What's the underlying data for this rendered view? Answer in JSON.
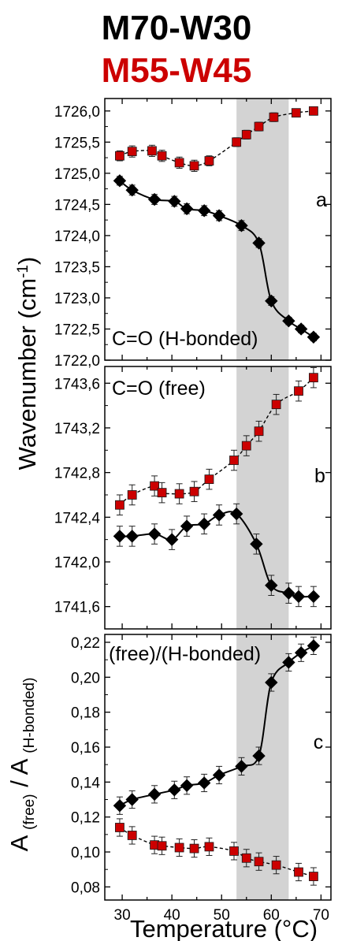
{
  "legend": {
    "series1": "M70-W30",
    "series2": "M55-W45",
    "series1_color": "#000000",
    "series2_color": "#cc0000"
  },
  "axes": {
    "ylabel_main": "Wavenumber (cm",
    "ylabel_main_sup": "-1",
    "ylabel_main_tail": ")",
    "ylabel_ratio_A1": "A",
    "ylabel_ratio_sub1": "(free)",
    "ylabel_ratio_mid": "/ A",
    "ylabel_ratio_sub2": "(H-bonded)",
    "xlabel": "Temperature (°C)"
  },
  "shading": {
    "x_start": 53,
    "x_end": 63.5,
    "color": "#d3d3d3"
  },
  "chart_data": [
    {
      "type": "line",
      "panel_letter": "a",
      "annotation": "C=O (H-bonded)",
      "xlim": [
        26.5,
        72
      ],
      "ylim": [
        1722.0,
        1726.2
      ],
      "ytick_values": [
        1722.0,
        1722.5,
        1723.0,
        1723.5,
        1724.0,
        1724.5,
        1725.0,
        1725.5,
        1726.0
      ],
      "ytick_labels": [
        "1722,0",
        "1722,5",
        "1723,0",
        "1723,5",
        "1724,0",
        "1724,5",
        "1725,0",
        "1725,5",
        "1726,0"
      ],
      "series": [
        {
          "name": "M70-W30",
          "marker": "diamond",
          "x": [
            29.5,
            32,
            36.5,
            40.5,
            43,
            46.5,
            49.5,
            54,
            57.5,
            60,
            63.5,
            66,
            68.5
          ],
          "y": [
            1724.88,
            1724.73,
            1724.58,
            1724.55,
            1724.43,
            1724.4,
            1724.32,
            1724.16,
            1723.88,
            1722.95,
            1722.63,
            1722.5,
            1722.37
          ],
          "err": [
            0.07,
            0.08,
            0.08,
            0.08,
            0.08,
            0.08,
            0.08,
            0.08,
            0.07,
            0.07,
            0.06,
            0.06,
            0.06
          ]
        },
        {
          "name": "M55-W45",
          "marker": "square",
          "x": [
            29.5,
            32,
            36,
            38,
            41.5,
            44.5,
            47.5,
            53,
            55,
            57.5,
            60.5,
            65,
            68.5
          ],
          "y": [
            1725.28,
            1725.35,
            1725.36,
            1725.28,
            1725.17,
            1725.12,
            1725.2,
            1725.5,
            1725.62,
            1725.75,
            1725.9,
            1725.97,
            1726.0
          ],
          "err": [
            0.08,
            0.09,
            0.09,
            0.09,
            0.09,
            0.09,
            0.08,
            0.07,
            0.07,
            0.07,
            0.07,
            0.06,
            0.06
          ]
        }
      ]
    },
    {
      "type": "line",
      "panel_letter": "b",
      "annotation": "C=O (free)",
      "xlim": [
        26.5,
        72
      ],
      "ylim": [
        1741.4,
        1743.75
      ],
      "ytick_values": [
        1741.6,
        1742.0,
        1742.4,
        1742.8,
        1743.2,
        1743.6
      ],
      "ytick_labels": [
        "1741,6",
        "1742,0",
        "1742,4",
        "1742,8",
        "1743,2",
        "1743,6"
      ],
      "series": [
        {
          "name": "M70-W30",
          "marker": "diamond",
          "x": [
            29.5,
            32,
            36.5,
            40,
            43,
            46.5,
            49.5,
            53,
            57,
            60,
            63.5,
            65.5,
            68.5
          ],
          "y": [
            1742.23,
            1742.23,
            1742.25,
            1742.2,
            1742.32,
            1742.34,
            1742.42,
            1742.43,
            1742.16,
            1741.79,
            1741.72,
            1741.69,
            1741.69
          ],
          "err": [
            0.09,
            0.09,
            0.09,
            0.09,
            0.09,
            0.09,
            0.09,
            0.09,
            0.09,
            0.09,
            0.09,
            0.09,
            0.09
          ]
        },
        {
          "name": "M55-W45",
          "marker": "square",
          "x": [
            29.5,
            32,
            36.5,
            38,
            41.5,
            44.5,
            47.5,
            52.5,
            55,
            57.5,
            61,
            65.5,
            68.5
          ],
          "y": [
            1742.51,
            1742.6,
            1742.68,
            1742.62,
            1742.61,
            1742.63,
            1742.74,
            1742.91,
            1743.04,
            1743.17,
            1743.41,
            1743.53,
            1743.65
          ],
          "err": [
            0.09,
            0.09,
            0.09,
            0.09,
            0.09,
            0.09,
            0.09,
            0.09,
            0.09,
            0.09,
            0.09,
            0.09,
            0.09
          ]
        }
      ]
    },
    {
      "type": "line",
      "panel_letter": "c",
      "annotation": "(free)/(H-bonded)",
      "xlim": [
        26.5,
        72
      ],
      "ylim": [
        0.0725,
        0.2245
      ],
      "ytick_values": [
        0.08,
        0.1,
        0.12,
        0.14,
        0.16,
        0.18,
        0.2,
        0.22
      ],
      "ytick_labels": [
        "0,08",
        "0,10",
        "0,12",
        "0,14",
        "0,16",
        "0,18",
        "0,20",
        "0,22"
      ],
      "xtick_values": [
        30,
        40,
        50,
        60,
        70
      ],
      "xtick_labels": [
        "30",
        "40",
        "50",
        "60",
        "70"
      ],
      "series": [
        {
          "name": "M70-W30",
          "marker": "diamond",
          "x": [
            29.5,
            32,
            36.5,
            40.5,
            43,
            46.5,
            49.5,
            54,
            57.5,
            60,
            63.5,
            66,
            68.5
          ],
          "y": [
            0.1265,
            0.13,
            0.133,
            0.1355,
            0.138,
            0.1395,
            0.144,
            0.149,
            0.155,
            0.197,
            0.2085,
            0.214,
            0.218
          ],
          "err": [
            0.005,
            0.005,
            0.005,
            0.005,
            0.005,
            0.005,
            0.005,
            0.005,
            0.005,
            0.005,
            0.005,
            0.005,
            0.005
          ]
        },
        {
          "name": "M55-W45",
          "marker": "square",
          "x": [
            29.5,
            32,
            36.5,
            38,
            41.5,
            44.5,
            47.5,
            52.5,
            55,
            57.5,
            61,
            65.5,
            68.5
          ],
          "y": [
            0.114,
            0.1095,
            0.104,
            0.1035,
            0.1025,
            0.102,
            0.103,
            0.1005,
            0.0965,
            0.0945,
            0.0925,
            0.0885,
            0.086
          ],
          "err": [
            0.005,
            0.005,
            0.005,
            0.005,
            0.005,
            0.005,
            0.005,
            0.005,
            0.005,
            0.005,
            0.005,
            0.005,
            0.005
          ]
        }
      ]
    }
  ]
}
